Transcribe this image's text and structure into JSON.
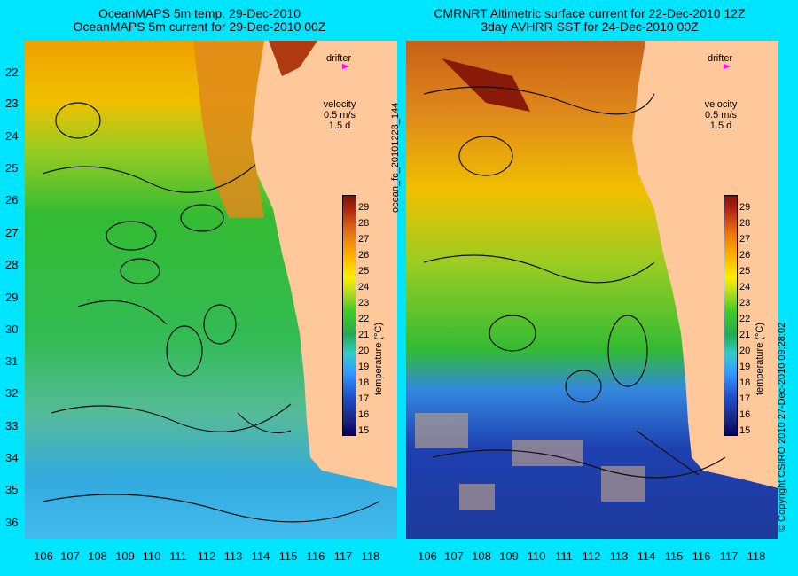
{
  "left_panel": {
    "title_line1": "OceanMAPS 5m temp. 29-Dec-2010",
    "title_line2": "OceanMAPS 5m current for 29-Dec-2010 00Z"
  },
  "right_panel": {
    "title_line1": "CMRNRT Altimetric surface current for 22-Dec-2010 12Z",
    "title_line2": "3day AVHRR SST for 24-Dec-2010 00Z"
  },
  "legend": {
    "drifter_label": "drifter",
    "velocity_label": "velocity",
    "velocity_value": "0.5 m/s",
    "velocity_time": "1.5 d",
    "colorbar_title": "temperature (°C)",
    "colorbar_ticks": [
      "29",
      "28",
      "27",
      "26",
      "25",
      "24",
      "23",
      "22",
      "21",
      "20",
      "19",
      "18",
      "17",
      "16",
      "15"
    ]
  },
  "axes": {
    "lat_labels": [
      "22",
      "23",
      "24",
      "25",
      "26",
      "27",
      "28",
      "29",
      "30",
      "31",
      "32",
      "33",
      "34",
      "35",
      "36"
    ],
    "lon_labels": [
      "106",
      "107",
      "108",
      "109",
      "110",
      "111",
      "112",
      "113",
      "114",
      "115",
      "116",
      "117",
      "118"
    ]
  },
  "side_text": {
    "file_id": "ocean_fc_20101223_144",
    "copyright": "© Copyright CSIRO 2010    27-Dec-2010 09:28:02"
  },
  "colors": {
    "background": "#00e5ff",
    "land": "#ffc89a",
    "drifter_marker": "#ff00ff"
  }
}
